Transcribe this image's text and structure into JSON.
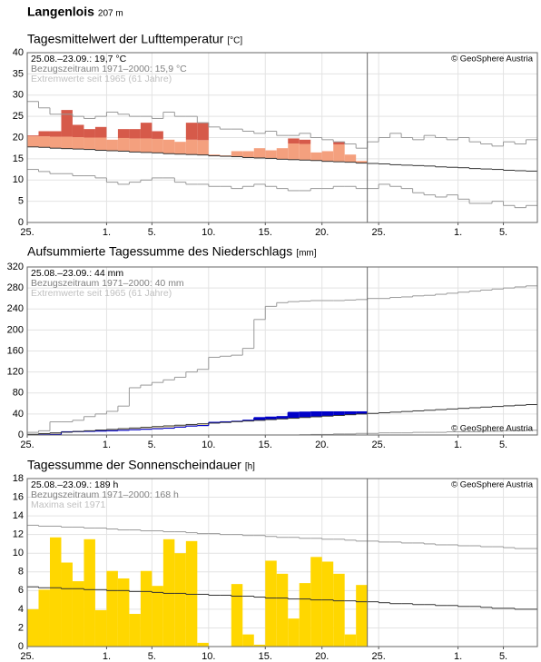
{
  "header": {
    "station": "Langenlois",
    "elevation": "207 m"
  },
  "chart_data": [
    {
      "type": "bar",
      "title": "Tagesmittelwert der Lufttemperatur",
      "unit": "[°C]",
      "info": [
        "25.08.–23.09.: 19,7 °C",
        "Bezugszeitraum 1971–2000: 15,9 °C",
        "Extremwerte seit 1965 (61 Jahre)"
      ],
      "copyright": "© GeoSphere Austria",
      "copyright_corner": "top-right",
      "xlim": [
        0,
        45
      ],
      "xticks": [
        {
          "value": 0,
          "label": "25."
        },
        {
          "value": 7,
          "label": "1."
        },
        {
          "value": 11,
          "label": "5."
        },
        {
          "value": 16,
          "label": "10."
        },
        {
          "value": 21,
          "label": "15."
        },
        {
          "value": 26,
          "label": "20."
        },
        {
          "value": 31,
          "label": "25."
        },
        {
          "value": 38,
          "label": "1."
        },
        {
          "value": 42,
          "label": "5."
        }
      ],
      "ylim": [
        0,
        40
      ],
      "yticks": [
        0,
        5,
        10,
        15,
        20,
        25,
        30,
        35,
        40
      ],
      "grid": true,
      "vline": 30,
      "series": [
        {
          "style": "bar",
          "from": 2,
          "color": "#f4a07e",
          "values": [
            20.3,
            20.3,
            20.2,
            20.2,
            20.1,
            20.0,
            20.0,
            19.5,
            19.9,
            19.8,
            19.8,
            19.7,
            19.5,
            19.0,
            19.5,
            19.4,
            16.0,
            15.8,
            16.8,
            16.8,
            17.5,
            17.0,
            17.5,
            18.6,
            18.5,
            16.5,
            16.8,
            18.4,
            16.0,
            14.5
          ]
        },
        {
          "style": "bar",
          "from": 0,
          "color": "#d65a4a",
          "values": [
            20.5,
            21.5,
            21.5,
            26.5,
            23.0,
            22.0,
            22.5,
            null,
            22.0,
            22.0,
            23.5,
            21.5,
            null,
            null,
            23.5,
            23.5,
            null,
            null,
            null,
            null,
            null,
            null,
            null,
            19.8,
            19.5,
            null,
            null,
            19.0,
            null,
            null
          ]
        },
        {
          "style": "step",
          "color": "#333333",
          "values": [
            17.8,
            17.7,
            17.5,
            17.4,
            17.3,
            17.2,
            17.0,
            16.9,
            16.8,
            16.6,
            16.5,
            16.4,
            16.2,
            16.1,
            16.0,
            15.9,
            15.7,
            15.6,
            15.5,
            15.3,
            15.2,
            15.1,
            14.9,
            14.8,
            14.7,
            14.6,
            14.4,
            14.3,
            14.2,
            14.0,
            13.9,
            13.8,
            13.6,
            13.5,
            13.4,
            13.3,
            13.1,
            13.0,
            12.9,
            12.7,
            12.6,
            12.5,
            12.3,
            12.2,
            12.1
          ]
        },
        {
          "style": "step",
          "color": "#999999",
          "values": [
            28.5,
            27.0,
            25.5,
            25.5,
            25.0,
            24.5,
            25.0,
            26.0,
            25.5,
            25.0,
            25.0,
            24.5,
            26.0,
            25.0,
            25.0,
            23.5,
            22.5,
            22.0,
            22.0,
            21.5,
            21.0,
            21.5,
            20.5,
            20.5,
            21.0,
            20.0,
            19.5,
            19.0,
            18.5,
            17.5,
            19.0,
            20.0,
            21.0,
            20.0,
            19.5,
            20.5,
            20.0,
            19.5,
            20.0,
            19.0,
            18.5,
            18.0,
            19.0,
            18.5,
            19.5
          ]
        },
        {
          "style": "step",
          "color": "#999999",
          "values": [
            12.5,
            12.0,
            11.5,
            11.5,
            11.0,
            11.0,
            10.5,
            9.5,
            9.0,
            9.5,
            10.0,
            10.5,
            10.5,
            9.5,
            9.0,
            9.0,
            8.5,
            8.5,
            8.0,
            8.5,
            9.0,
            8.5,
            8.0,
            7.5,
            7.5,
            8.0,
            8.0,
            8.5,
            8.5,
            8.0,
            8.0,
            9.0,
            8.5,
            8.0,
            7.0,
            6.5,
            6.0,
            6.5,
            5.5,
            4.5,
            4.5,
            5.0,
            4.0,
            3.5,
            4.0
          ]
        }
      ]
    },
    {
      "type": "line",
      "title": "Aufsummierte Tagessumme des Niederschlags",
      "unit": "[mm]",
      "info": [
        "25.08.–23.09.: 44 mm",
        "Bezugszeitraum 1971–2000: 40 mm",
        "Extremwerte seit 1965 (61 Jahre)"
      ],
      "copyright": "© GeoSphere Austria",
      "copyright_corner": "bottom-right",
      "xlim": [
        0,
        45
      ],
      "xticks": [
        {
          "value": 0,
          "label": "25."
        },
        {
          "value": 7,
          "label": "1."
        },
        {
          "value": 11,
          "label": "5."
        },
        {
          "value": 16,
          "label": "10."
        },
        {
          "value": 21,
          "label": "15."
        },
        {
          "value": 26,
          "label": "20."
        },
        {
          "value": 31,
          "label": "25."
        },
        {
          "value": 38,
          "label": "1."
        },
        {
          "value": 42,
          "label": "5."
        }
      ],
      "ylim": [
        0,
        320
      ],
      "yticks": [
        0,
        40,
        80,
        120,
        160,
        200,
        240,
        280,
        320
      ],
      "grid": true,
      "vline": 30,
      "series": [
        {
          "style": "fill",
          "against": 1,
          "color": "#0000c8",
          "color_above": "#0000c8",
          "color_below": "#fff2b8",
          "values": [
            0.2,
            0.5,
            1.0,
            6.0,
            6.5,
            7.0,
            7.5,
            8.0,
            9.0,
            10.0,
            11.0,
            12.0,
            13.0,
            15.0,
            17.0,
            18.0,
            24.0,
            25.0,
            26.0,
            28.0,
            33.0,
            34.0,
            35.0,
            43.0,
            43.5,
            44.0,
            44.0,
            44.0,
            44.0,
            44.0
          ]
        },
        {
          "style": "step",
          "color": "#333333",
          "values": [
            1.3,
            2.7,
            4.0,
            5.3,
            6.7,
            8.0,
            9.3,
            10.6,
            12.0,
            13.3,
            14.6,
            16.0,
            17.3,
            18.6,
            20.0,
            21.3,
            22.6,
            23.9,
            25.3,
            26.6,
            27.9,
            29.3,
            30.6,
            31.9,
            33.3,
            34.6,
            35.9,
            37.2,
            38.6,
            39.9,
            41.1,
            42.3,
            43.5,
            44.7,
            45.9,
            47.1,
            48.3,
            49.5,
            50.7,
            51.9,
            53.1,
            54.3,
            55.5,
            56.7,
            57.9
          ]
        },
        {
          "style": "step",
          "color": "#999999",
          "values": [
            5,
            8,
            25,
            25,
            28,
            35,
            40,
            45,
            55,
            90,
            95,
            100,
            105,
            110,
            120,
            125,
            148,
            150,
            152,
            165,
            220,
            245,
            252,
            254,
            255,
            256,
            256,
            256,
            257,
            258,
            260,
            260,
            262,
            263,
            265,
            266,
            268,
            270,
            272,
            274,
            276,
            278,
            280,
            282,
            284
          ]
        },
        {
          "style": "step",
          "color": "#999999",
          "values": [
            0,
            0,
            0,
            0,
            0,
            0,
            0,
            0,
            0,
            0,
            0,
            0,
            0,
            0,
            0,
            0,
            0,
            0,
            0,
            0,
            0,
            0,
            0,
            0,
            0.5,
            1,
            1,
            2,
            2,
            3,
            3,
            4,
            4,
            4,
            5,
            5,
            5,
            6,
            6,
            6,
            7,
            7,
            8,
            8,
            9
          ]
        }
      ]
    },
    {
      "type": "bar",
      "title": "Tagessumme der Sonnenscheindauer",
      "unit": "[h]",
      "info": [
        "25.08.–23.09.: 189 h",
        "Bezugszeitraum 1971–2000: 168 h",
        "Maxima seit 1971"
      ],
      "copyright": "© GeoSphere Austria",
      "copyright_corner": "top-right",
      "xlim": [
        0,
        45
      ],
      "xticks": [
        {
          "value": 0,
          "label": "25."
        },
        {
          "value": 7,
          "label": "1."
        },
        {
          "value": 11,
          "label": "5."
        },
        {
          "value": 16,
          "label": "10."
        },
        {
          "value": 21,
          "label": "15."
        },
        {
          "value": 26,
          "label": "20."
        },
        {
          "value": 31,
          "label": "25."
        },
        {
          "value": 38,
          "label": "1."
        },
        {
          "value": 42,
          "label": "5."
        }
      ],
      "ylim": [
        0,
        18
      ],
      "yticks": [
        0,
        2,
        4,
        6,
        8,
        10,
        12,
        14,
        16,
        18
      ],
      "grid": true,
      "vline": 30,
      "series": [
        {
          "style": "bar",
          "color": "#ffd700",
          "values": [
            4.0,
            6.1,
            11.7,
            9.0,
            7.0,
            11.5,
            3.9,
            8.1,
            7.3,
            3.5,
            8.1,
            6.5,
            11.5,
            10.0,
            11.3,
            0.4,
            0,
            0,
            6.7,
            1.3,
            0.2,
            9.2,
            7.8,
            3.0,
            6.8,
            9.6,
            9.1,
            7.8,
            1.3,
            6.6
          ]
        },
        {
          "style": "step",
          "color": "#333333",
          "values": [
            6.4,
            6.3,
            6.3,
            6.2,
            6.2,
            6.1,
            6.1,
            6.0,
            6.0,
            5.9,
            5.9,
            5.8,
            5.7,
            5.7,
            5.6,
            5.6,
            5.5,
            5.5,
            5.4,
            5.4,
            5.3,
            5.2,
            5.2,
            5.1,
            5.1,
            5.0,
            5.0,
            4.9,
            4.9,
            4.8,
            4.8,
            4.7,
            4.6,
            4.6,
            4.5,
            4.5,
            4.4,
            4.4,
            4.3,
            4.3,
            4.2,
            4.1,
            4.1,
            4.0,
            4.0
          ]
        },
        {
          "style": "step",
          "color": "#999999",
          "values": [
            13.0,
            12.9,
            12.9,
            12.8,
            12.8,
            12.7,
            12.7,
            12.6,
            12.5,
            12.5,
            12.4,
            12.4,
            12.3,
            12.3,
            12.2,
            12.1,
            12.1,
            12.0,
            12.0,
            11.9,
            11.9,
            11.8,
            11.7,
            11.7,
            11.6,
            11.6,
            11.5,
            11.5,
            11.4,
            11.3,
            11.3,
            11.2,
            11.2,
            11.1,
            11.1,
            11.0,
            10.9,
            10.9,
            10.8,
            10.8,
            10.7,
            10.7,
            10.6,
            10.5,
            10.5
          ]
        }
      ]
    }
  ]
}
